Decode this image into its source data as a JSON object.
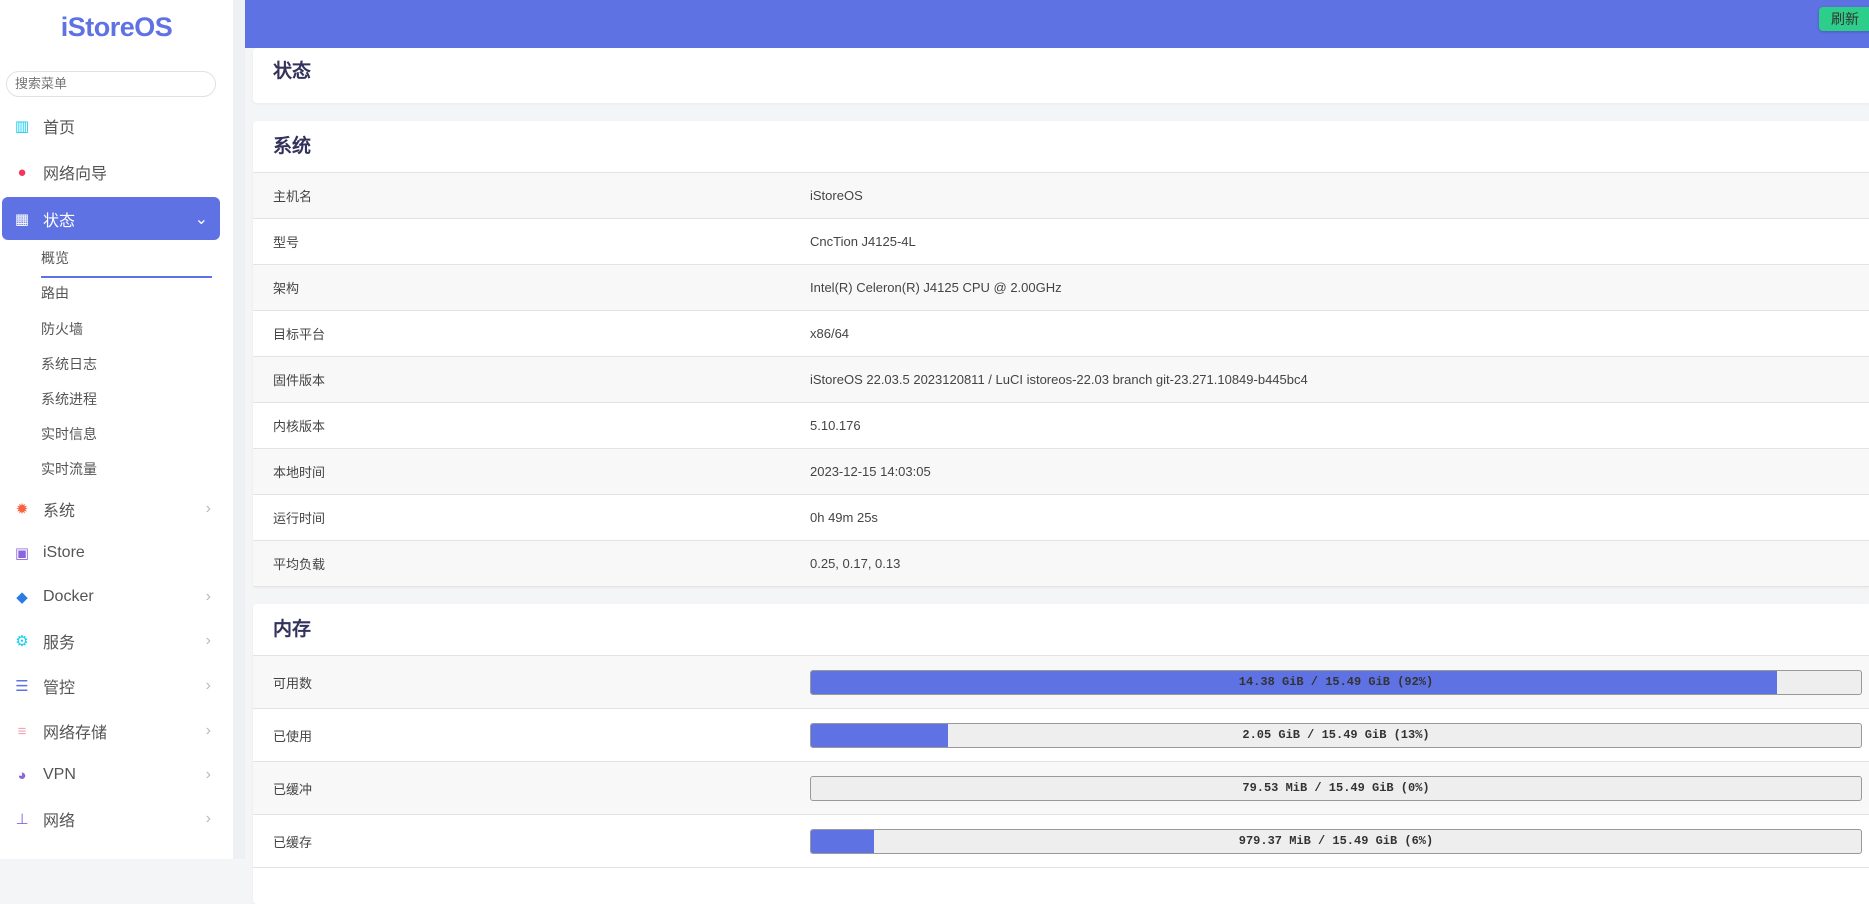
{
  "sidebar": {
    "logo": "iStoreOS",
    "search_placeholder": "搜索菜单",
    "items": [
      {
        "label": "首页",
        "icon": "dashboard-icon",
        "color": "#11cdef"
      },
      {
        "label": "网络向导",
        "icon": "globe-icon",
        "color": "#f5365c"
      },
      {
        "label": "状态",
        "icon": "grid-icon",
        "active": true
      },
      {
        "label": "系统",
        "icon": "gear-icon",
        "color": "#fb6340"
      },
      {
        "label": "iStore",
        "icon": "bag-icon",
        "color": "#8965e0"
      },
      {
        "label": "Docker",
        "icon": "docker-icon",
        "color": "#2c7be5"
      },
      {
        "label": "服务",
        "icon": "gears-icon",
        "color": "#11cdef"
      },
      {
        "label": "管控",
        "icon": "sliders-icon",
        "color": "#5e72e4"
      },
      {
        "label": "网络存储",
        "icon": "database-icon",
        "color": "#f3a4b5"
      },
      {
        "label": "VPN",
        "icon": "vpn-globe-icon",
        "color": "#8965e0"
      },
      {
        "label": "网络",
        "icon": "sitemap-icon",
        "color": "#8965e0"
      }
    ],
    "subitems": [
      "概览",
      "路由",
      "防火墙",
      "系统日志",
      "系统进程",
      "实时信息",
      "实时流量"
    ]
  },
  "header": {
    "refresh_label": "刷新"
  },
  "page": {
    "title": "状态"
  },
  "system": {
    "title": "系统",
    "rows": [
      {
        "k": "主机名",
        "v": "iStoreOS"
      },
      {
        "k": "型号",
        "v": "CncTion J4125-4L"
      },
      {
        "k": "架构",
        "v": "Intel(R) Celeron(R) J4125 CPU @ 2.00GHz"
      },
      {
        "k": "目标平台",
        "v": "x86/64"
      },
      {
        "k": "固件版本",
        "v": "iStoreOS 22.03.5 2023120811 / LuCI istoreos-22.03 branch git-23.271.10849-b445bc4"
      },
      {
        "k": "内核版本",
        "v": "5.10.176"
      },
      {
        "k": "本地时间",
        "v": "2023-12-15 14:03:05"
      },
      {
        "k": "运行时间",
        "v": "0h 49m 25s"
      },
      {
        "k": "平均负载",
        "v": "0.25, 0.17, 0.13"
      }
    ]
  },
  "memory": {
    "title": "内存",
    "rows": [
      {
        "k": "可用数",
        "text": "14.38 GiB / 15.49 GiB (92%)",
        "percent": 92
      },
      {
        "k": "已使用",
        "text": "2.05 GiB / 15.49 GiB (13%)",
        "percent": 13
      },
      {
        "k": "已缓冲",
        "text": "79.53 MiB / 15.49 GiB (0%)",
        "percent": 0
      },
      {
        "k": "已缓存",
        "text": "979.37 MiB / 15.49 GiB (6%)",
        "percent": 6
      }
    ]
  },
  "colors": {
    "accent": "#5e72e4",
    "refresh": "#2dce89"
  }
}
